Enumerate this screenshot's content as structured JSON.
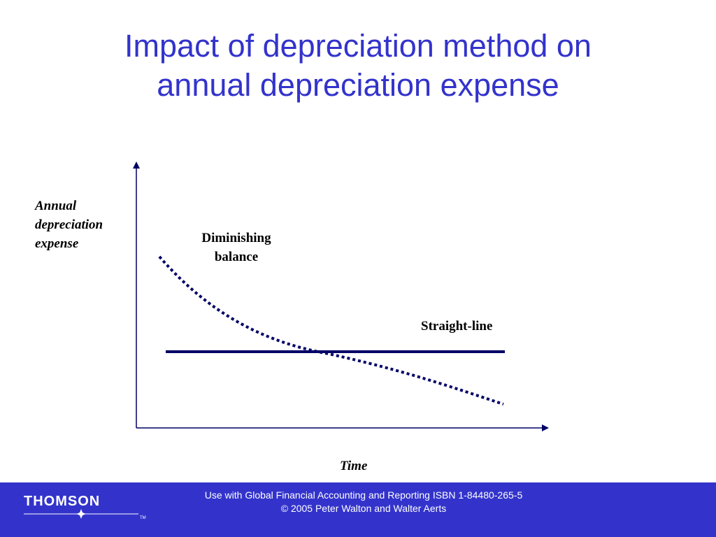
{
  "title": {
    "line1": "Impact of depreciation method on",
    "line2": "annual depreciation expense"
  },
  "diagram": {
    "y_axis_label": [
      "Annual",
      "depreciation",
      "expense"
    ],
    "x_axis_label": "Time",
    "series": [
      {
        "name_lines": [
          "Diminishing",
          "balance"
        ],
        "style": "dotted"
      },
      {
        "name": "Straight-line",
        "style": "solid"
      }
    ],
    "line_color": "#000066"
  },
  "footer": {
    "line1": "Use with Global Financial Accounting and Reporting ISBN 1-84480-265-5",
    "line2": "© 2005 Peter Walton and Walter Aerts",
    "background": "#3333cc",
    "logo_text": "THOMSON",
    "logo_tm": "TM"
  },
  "colors": {
    "title": "#3333cc"
  }
}
